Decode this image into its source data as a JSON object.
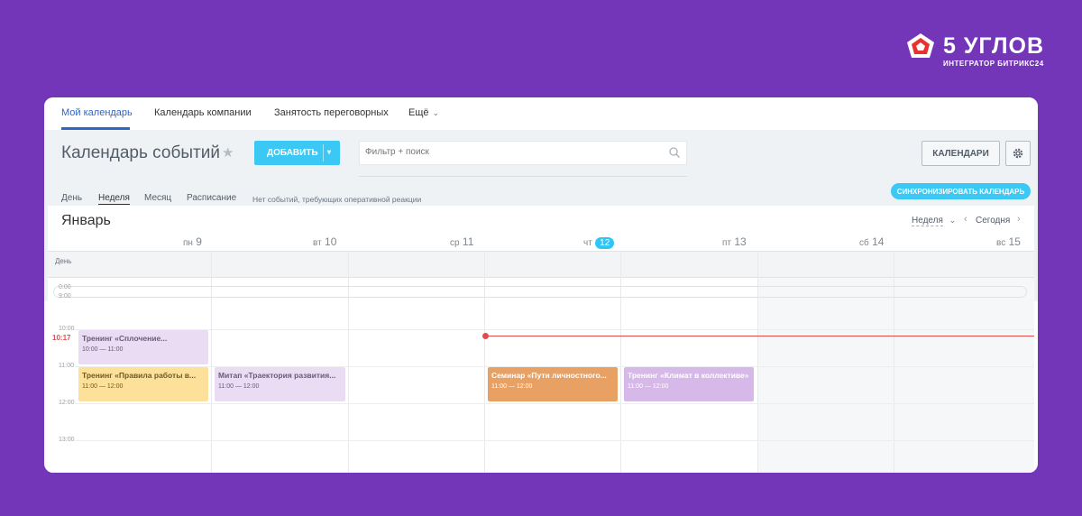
{
  "brand": {
    "title": "5 УГЛОВ",
    "subtitle": "ИНТЕГРАТОР БИТРИКС24"
  },
  "topnav": {
    "items": [
      {
        "label": "Мой календарь",
        "active": true
      },
      {
        "label": "Календарь компании"
      },
      {
        "label": "Занятость переговорных"
      },
      {
        "label": "Ещё"
      }
    ]
  },
  "toolbar": {
    "title": "Календарь событий",
    "add_label": "ДОБАВИТЬ",
    "search_placeholder": "Фильтр + поиск",
    "calendars_label": "КАЛЕНДАРИ"
  },
  "views": {
    "tabs": [
      "День",
      "Неделя",
      "Месяц",
      "Расписание"
    ],
    "active": "Неделя",
    "no_events": "Нет событий, требующих оперативной реакции",
    "sync_label": "СИНХРОНИЗИРОВАТЬ КАЛЕНДАРЬ"
  },
  "calendar": {
    "month": "Январь",
    "view_select": "Неделя",
    "today_label": "Сегодня",
    "days": [
      {
        "name": "пн",
        "num": "9"
      },
      {
        "name": "вт",
        "num": "10"
      },
      {
        "name": "ср",
        "num": "11"
      },
      {
        "name": "чт",
        "num": "12",
        "today": true
      },
      {
        "name": "пт",
        "num": "13"
      },
      {
        "name": "сб",
        "num": "14"
      },
      {
        "name": "вс",
        "num": "15"
      }
    ],
    "allday_label": "День",
    "hours": [
      "0:00",
      "9:00",
      "10:00",
      "11:00",
      "12:00",
      "13:00"
    ],
    "now_label": "10:17",
    "events": [
      {
        "title": "Тренинг «Сплочение...",
        "time": "10:00 — 11:00",
        "color": "#eadcf2",
        "text_color": "#6b5a78"
      },
      {
        "title": "Тренинг «Правила работы в...",
        "time": "11:00 — 12:00",
        "color": "#fde09a",
        "text_color": "#6f5a25"
      },
      {
        "title": "Митап «Траектория развития...",
        "time": "11:00 — 12:00",
        "color": "#eadcf2",
        "text_color": "#6b5a78"
      },
      {
        "title": "Семинар «Пути личностного...",
        "time": "11:00 — 12:00",
        "color": "#e8a063",
        "text_color": "#ffffff"
      },
      {
        "title": "Тренинг «Климат в коллективе»",
        "time": "11:00 — 12:00",
        "color": "#d6b9e8",
        "text_color": "#ffffff"
      }
    ]
  }
}
